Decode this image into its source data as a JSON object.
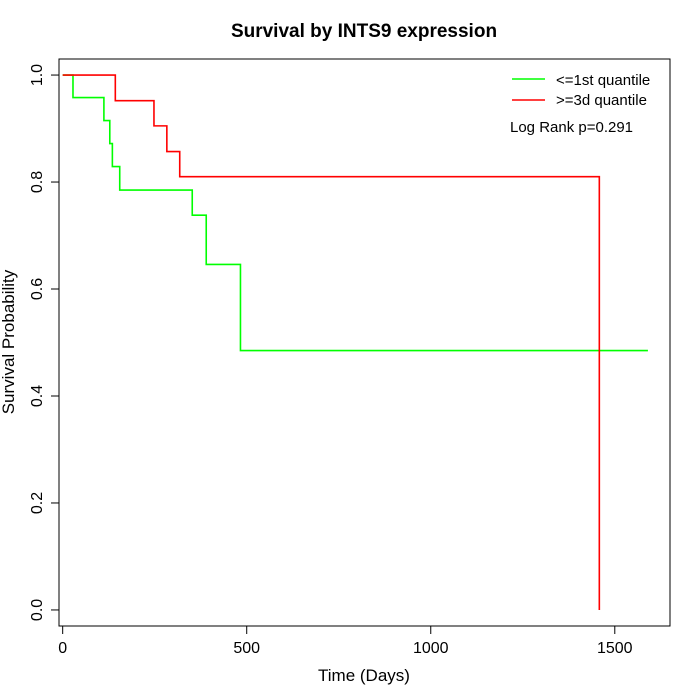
{
  "chart_data": {
    "type": "line",
    "subtype": "kaplan-meier-step",
    "title": "Survival by INTS9 expression",
    "xlabel": "Time (Days)",
    "ylabel": "Survival Probability",
    "xlim": [
      -10,
      1650
    ],
    "ylim": [
      -0.03,
      1.03
    ],
    "x_ticks": [
      0,
      500,
      1000,
      1500
    ],
    "y_ticks": [
      0.0,
      0.2,
      0.4,
      0.6,
      0.8,
      1.0
    ],
    "x_tick_labels": [
      "0",
      "500",
      "1000",
      "1500"
    ],
    "y_tick_labels": [
      "0.0",
      "0.2",
      "0.4",
      "0.6",
      "0.8",
      "1.0"
    ],
    "grid": false,
    "legend_position": "top-right",
    "annotation": "Log Rank p=0.291",
    "series": [
      {
        "name": "<=1st quantile",
        "color": "#00ff00",
        "x": [
          0,
          28,
          112,
          128,
          135,
          155,
          352,
          390,
          483,
          1590
        ],
        "y": [
          1.0,
          0.958,
          0.915,
          0.872,
          0.829,
          0.785,
          0.738,
          0.646,
          0.485,
          0.485
        ]
      },
      {
        "name": ">=3d quantile",
        "color": "#ff0000",
        "x": [
          0,
          143,
          248,
          283,
          318,
          1458,
          1458
        ],
        "y": [
          1.0,
          0.952,
          0.905,
          0.857,
          0.81,
          0.81,
          0.0
        ]
      }
    ]
  }
}
